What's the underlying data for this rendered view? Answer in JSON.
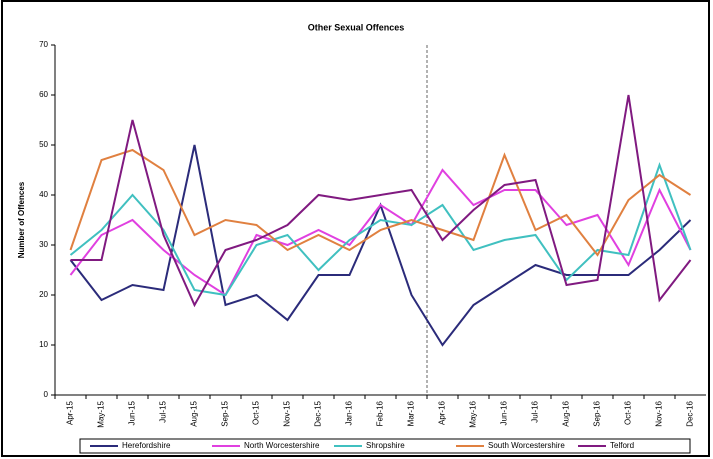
{
  "chart_data": {
    "type": "line",
    "title": "Other Sexual Offences",
    "y_label": "Number of Offences",
    "categories": [
      "Apr-15",
      "May-15",
      "Jun-15",
      "Jul-15",
      "Aug-15",
      "Sep-15",
      "Oct-15",
      "Nov-15",
      "Dec-15",
      "Jan-16",
      "Feb-16",
      "Mar-16",
      "Apr-16",
      "May-16",
      "Jun-16",
      "Jul-16",
      "Aug-16",
      "Sep-16",
      "Oct-16",
      "Nov-16",
      "Dec-16"
    ],
    "series": [
      {
        "name": "Herefordshire",
        "color": "#2b2b7a",
        "values": [
          27,
          19,
          22,
          21,
          50,
          18,
          20,
          15,
          24,
          24,
          38,
          20,
          10,
          18,
          22,
          26,
          24,
          24,
          24,
          29,
          35
        ]
      },
      {
        "name": "North Worcestershire",
        "color": "#e040e0",
        "values": [
          24,
          32,
          35,
          29,
          24,
          20,
          32,
          30,
          33,
          30,
          38,
          34,
          45,
          38,
          41,
          41,
          34,
          36,
          26,
          41,
          29
        ]
      },
      {
        "name": "Shropshire",
        "color": "#40c0c0",
        "values": [
          28,
          33,
          40,
          33,
          21,
          20,
          30,
          32,
          25,
          31,
          35,
          34,
          38,
          29,
          31,
          32,
          23,
          29,
          28,
          46,
          29
        ]
      },
      {
        "name": "South Worcestershire",
        "color": "#e08040",
        "values": [
          29,
          47,
          49,
          45,
          32,
          35,
          34,
          29,
          32,
          29,
          33,
          35,
          33,
          31,
          48,
          33,
          36,
          28,
          39,
          44,
          40
        ]
      },
      {
        "name": "Telford",
        "color": "#801a80",
        "values": [
          27,
          27,
          55,
          32,
          18,
          29,
          31,
          34,
          40,
          39,
          40,
          41,
          31,
          37,
          42,
          43,
          22,
          23,
          60,
          19,
          27
        ]
      }
    ],
    "ylim": [
      0,
      70
    ],
    "yticks": [
      0,
      10,
      20,
      30,
      40,
      50,
      60,
      70
    ],
    "grid": false
  }
}
